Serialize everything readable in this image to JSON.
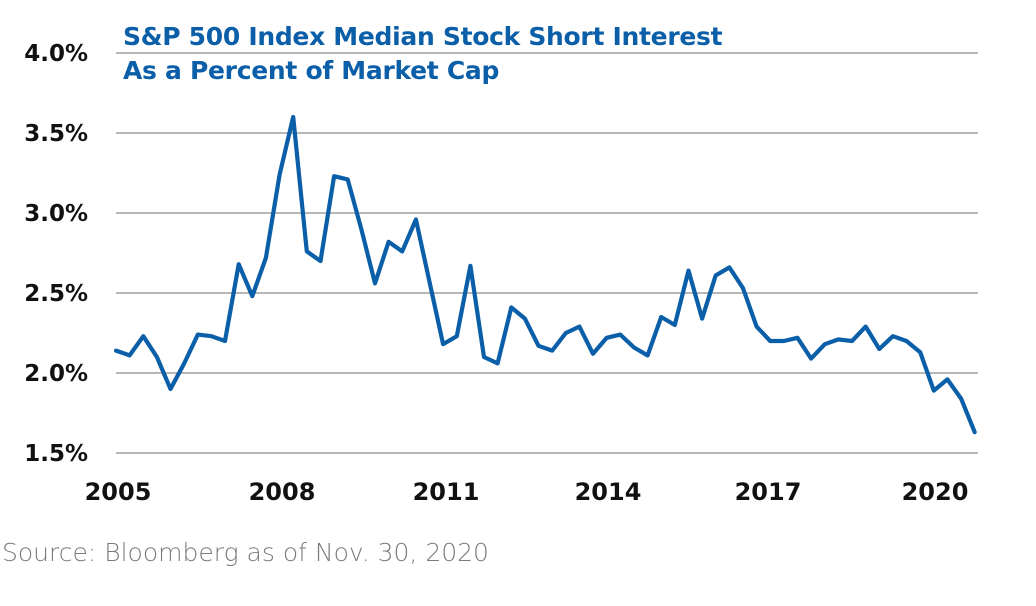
{
  "chart_data": {
    "type": "line",
    "title": "S&P 500 Index Median Stock Short Interest",
    "subtitle": "As a Percent of Market Cap",
    "xlabel": "",
    "ylabel": "",
    "source": "Source: Bloomberg as of Nov. 30, 2020",
    "grid": true,
    "legend": "none",
    "line_color": "#0b5ea8",
    "ylim": [
      1.5,
      4.0
    ],
    "yticks": [
      {
        "value": 4.0,
        "label": "4.0%"
      },
      {
        "value": 3.5,
        "label": "3.5%"
      },
      {
        "value": 3.0,
        "label": "3.0%"
      },
      {
        "value": 2.5,
        "label": "2.5%"
      },
      {
        "value": 2.0,
        "label": "2.0%"
      },
      {
        "value": 1.5,
        "label": "1.5%"
      }
    ],
    "xlim": [
      2005.0,
      2020.9
    ],
    "xticks": [
      {
        "value": 2005,
        "label": "2005"
      },
      {
        "value": 2008,
        "label": "2008"
      },
      {
        "value": 2011,
        "label": "2011"
      },
      {
        "value": 2014,
        "label": "2014"
      },
      {
        "value": 2017,
        "label": "2017"
      },
      {
        "value": 2020,
        "label": "2020"
      }
    ],
    "series": [
      {
        "name": "Median Short Interest (% of Market Cap)",
        "frequency": "quarterly",
        "start": 2005.0,
        "step": 0.25,
        "values": [
          2.14,
          2.11,
          2.23,
          2.1,
          1.9,
          2.06,
          2.24,
          2.23,
          2.2,
          2.68,
          2.48,
          2.72,
          3.24,
          3.6,
          2.76,
          2.7,
          3.23,
          3.21,
          2.9,
          2.56,
          2.82,
          2.76,
          2.96,
          2.57,
          2.18,
          2.23,
          2.67,
          2.1,
          2.06,
          2.41,
          2.34,
          2.17,
          2.14,
          2.25,
          2.29,
          2.12,
          2.22,
          2.24,
          2.16,
          2.11,
          2.35,
          2.3,
          2.64,
          2.34,
          2.61,
          2.66,
          2.53,
          2.29,
          2.2,
          2.2,
          2.22,
          2.09,
          2.18,
          2.21,
          2.2,
          2.29,
          2.15,
          2.23,
          2.2,
          2.13,
          1.89,
          1.96,
          1.84,
          1.63
        ]
      }
    ]
  }
}
